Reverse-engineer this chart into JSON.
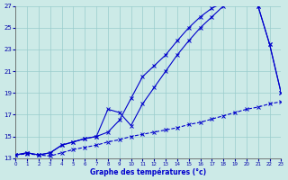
{
  "xlabel": "Graphe des températures (°c)",
  "background_color": "#cceae7",
  "grid_color": "#99cccc",
  "line_color": "#0000cc",
  "xlim": [
    0,
    23
  ],
  "ylim": [
    13,
    27
  ],
  "xticks": [
    0,
    1,
    2,
    3,
    4,
    5,
    6,
    7,
    8,
    9,
    10,
    11,
    12,
    13,
    14,
    15,
    16,
    17,
    18,
    19,
    20,
    21,
    22,
    23
  ],
  "yticks": [
    13,
    15,
    17,
    19,
    21,
    23,
    25,
    27
  ],
  "line1_x": [
    0,
    1,
    2,
    3,
    4,
    5,
    6,
    7,
    8,
    9,
    10,
    11,
    12,
    13,
    14,
    15,
    16,
    17,
    18,
    19,
    20,
    21,
    22,
    23
  ],
  "line1_y": [
    13.3,
    13.4,
    13.3,
    13.2,
    13.5,
    13.8,
    14.0,
    14.2,
    14.5,
    14.7,
    15.0,
    15.2,
    15.4,
    15.6,
    15.8,
    16.1,
    16.3,
    16.6,
    16.9,
    17.2,
    17.5,
    17.7,
    18.0,
    18.2
  ],
  "line2_x": [
    0,
    1,
    2,
    3,
    4,
    5,
    6,
    7,
    8,
    9,
    10,
    11,
    12,
    13,
    14,
    15,
    16,
    17,
    18,
    19,
    20,
    21,
    22,
    23
  ],
  "line2_y": [
    13.3,
    13.5,
    13.3,
    13.5,
    14.2,
    14.5,
    14.8,
    15.0,
    15.4,
    16.5,
    18.5,
    20.5,
    21.5,
    22.5,
    23.8,
    25.0,
    26.0,
    26.8,
    27.3,
    27.5,
    27.3,
    27.0,
    23.5,
    19.0
  ],
  "line3_x": [
    0,
    1,
    2,
    3,
    4,
    5,
    6,
    7,
    8,
    9,
    10,
    11,
    12,
    13,
    14,
    15,
    16,
    17,
    18,
    19,
    20,
    21,
    22,
    23
  ],
  "line3_y": [
    13.3,
    13.5,
    13.3,
    13.5,
    14.2,
    14.5,
    14.8,
    15.0,
    17.5,
    17.2,
    16.0,
    18.0,
    19.5,
    21.0,
    22.5,
    23.8,
    25.0,
    26.0,
    27.0,
    27.5,
    27.5,
    27.0,
    23.5,
    19.0
  ]
}
